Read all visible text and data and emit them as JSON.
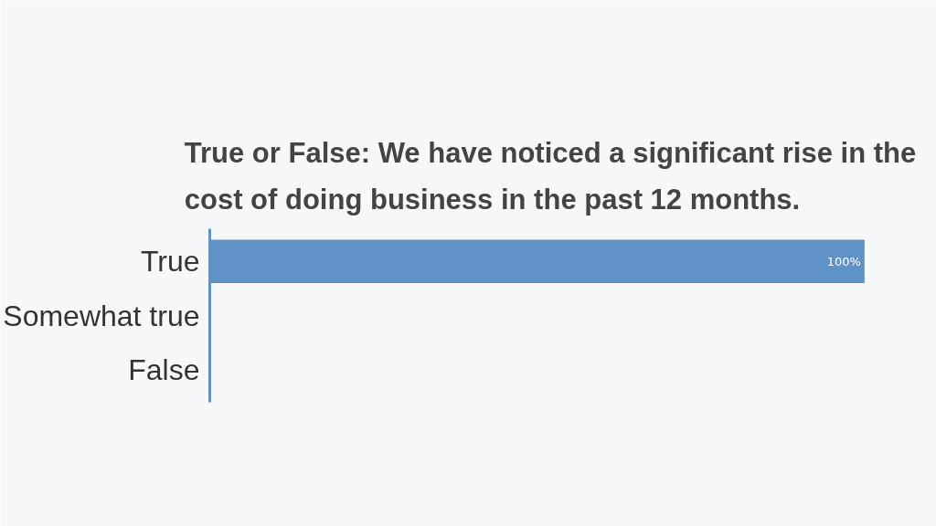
{
  "chart_data": {
    "type": "bar",
    "orientation": "horizontal",
    "title": "True or False: We have noticed a significant rise in the cost of doing business in the past 12 months.",
    "categories": [
      "True",
      "Somewhat true",
      "False"
    ],
    "values": [
      100,
      0,
      0
    ],
    "value_labels": [
      "100%",
      null,
      null
    ],
    "color": "#5f93c8",
    "grid": false
  }
}
